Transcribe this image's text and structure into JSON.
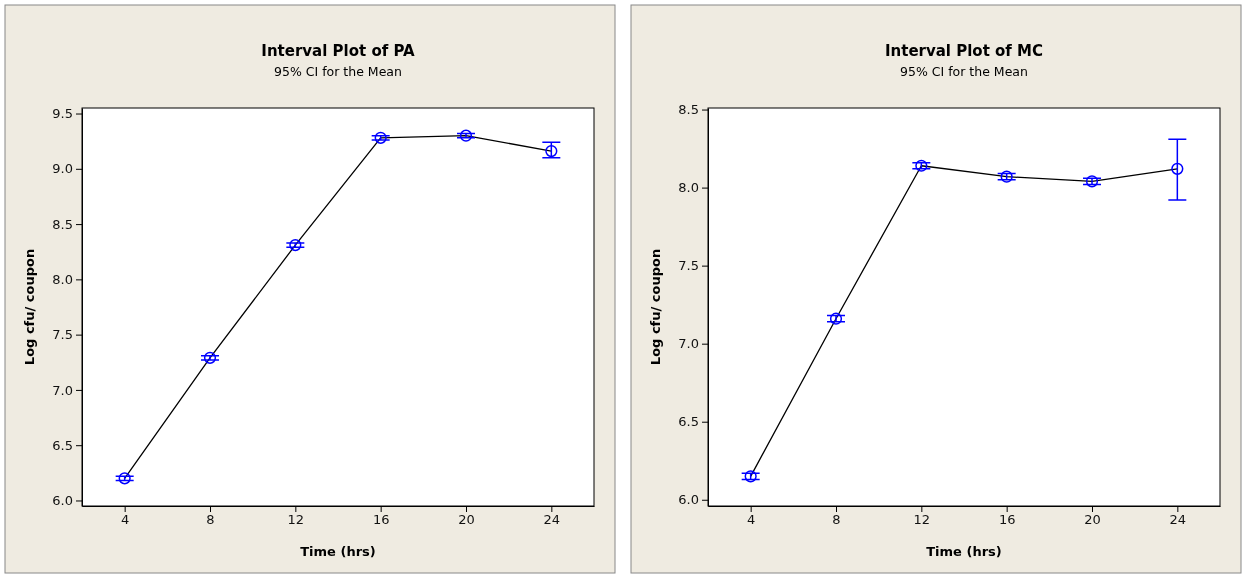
{
  "chart_data": [
    {
      "type": "line",
      "title": "Interval Plot of PA",
      "subtitle": "95% CI for the Mean",
      "xlabel": "Time (hrs)",
      "ylabel": "Log cfu/ coupon",
      "x": [
        4,
        8,
        12,
        16,
        20,
        24
      ],
      "series": [
        {
          "color": "#0000ff",
          "values": [
            6.2,
            7.29,
            8.31,
            9.28,
            9.3,
            9.16
          ],
          "errors": [
            0.02,
            0.02,
            0.02,
            0.02,
            0.02,
            [
              9.1,
              9.24
            ]
          ]
        }
      ],
      "xlim": [
        2,
        26
      ],
      "xticks": [
        4,
        8,
        12,
        16,
        20,
        24
      ],
      "ylim": [
        5.95,
        9.55
      ],
      "yticks": [
        {
          "value": 6.0,
          "label": "6.0"
        },
        {
          "value": 6.5,
          "label": "6.5"
        },
        {
          "value": 7.0,
          "label": "7.0"
        },
        {
          "value": 7.5,
          "label": "7.5"
        },
        {
          "value": 8.0,
          "label": "8.0"
        },
        {
          "value": 8.5,
          "label": "8.5"
        },
        {
          "value": 9.0,
          "label": "9.0"
        },
        {
          "value": 9.5,
          "label": "9.5"
        }
      ],
      "marker": "circle"
    },
    {
      "type": "line",
      "title": "Interval Plot of MC",
      "subtitle": "95% CI for the Mean",
      "xlabel": "Time (hrs)",
      "ylabel": "Log cfu/ coupon",
      "x": [
        4,
        8,
        12,
        16,
        20,
        24
      ],
      "series": [
        {
          "color": "#0000ff",
          "values": [
            6.15,
            7.16,
            8.14,
            8.07,
            8.04,
            8.12
          ],
          "errors": [
            0.02,
            0.02,
            0.02,
            0.02,
            0.02,
            [
              7.92,
              8.31
            ]
          ]
        }
      ],
      "xlim": [
        2,
        26
      ],
      "xticks": [
        4,
        8,
        12,
        16,
        20,
        24
      ],
      "ylim": [
        5.96,
        8.51
      ],
      "yticks": [
        {
          "value": 6.0,
          "label": "6.0"
        },
        {
          "value": 6.5,
          "label": "6.5"
        },
        {
          "value": 7.0,
          "label": "7.0"
        },
        {
          "value": 7.5,
          "label": "7.5"
        },
        {
          "value": 8.0,
          "label": "8.0"
        },
        {
          "value": 8.5,
          "label": "8.5"
        }
      ],
      "marker": "circle"
    }
  ]
}
